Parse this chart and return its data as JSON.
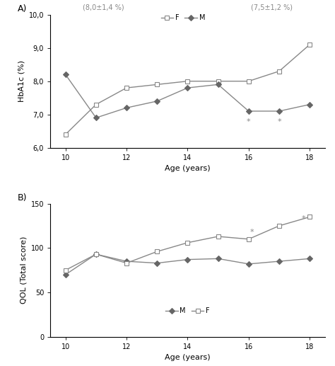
{
  "age": [
    10,
    11,
    12,
    13,
    14,
    15,
    16,
    17,
    18
  ],
  "hba1c_F": [
    6.4,
    7.3,
    7.8,
    7.9,
    8.0,
    8.0,
    8.0,
    8.3,
    9.1
  ],
  "hba1c_M": [
    8.2,
    6.9,
    7.2,
    7.4,
    7.8,
    7.9,
    7.1,
    7.1,
    7.3
  ],
  "qol_M": [
    70,
    93,
    85,
    83,
    87,
    88,
    82,
    85,
    88
  ],
  "qol_F": [
    75,
    93,
    83,
    96,
    106,
    113,
    110,
    125,
    135
  ],
  "hba1c_ylim": [
    6.0,
    10.0
  ],
  "hba1c_yticks": [
    6.0,
    7.0,
    8.0,
    9.0,
    10.0
  ],
  "hba1c_yticklabels": [
    "6,0",
    "7,0",
    "8,0",
    "9,0",
    "10,0"
  ],
  "qol_ylim": [
    0,
    150
  ],
  "qol_yticks": [
    0,
    50,
    100,
    150
  ],
  "qol_yticklabels": [
    "0",
    "50",
    "100",
    "150"
  ],
  "xlim": [
    9.5,
    18.5
  ],
  "xticks": [
    10,
    12,
    14,
    16,
    18
  ],
  "xlabel": "Age (years)",
  "hba1c_ylabel": "HbA1c (%)",
  "qol_ylabel": "QOL (Total score)",
  "panel_a_label": "A)",
  "panel_b_label": "B)",
  "annotation_F": "(8,0±1,4 %)",
  "annotation_M": "(7,5±1,2 %)",
  "line_color": "#888888",
  "marker_color_filled": "#666666",
  "marker_F": "s",
  "marker_M": "D",
  "linewidth": 1.0,
  "markersize": 4,
  "fontsize_label": 8,
  "fontsize_tick": 7,
  "fontsize_annot": 7,
  "fontsize_panel": 9,
  "fontsize_star": 8
}
